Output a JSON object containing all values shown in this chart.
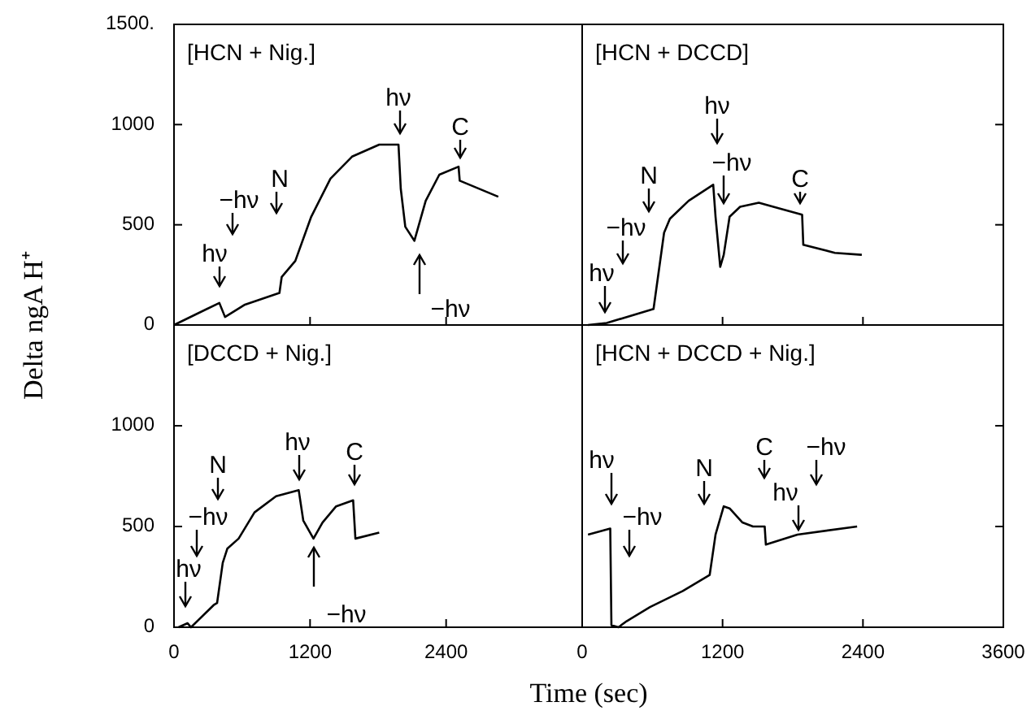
{
  "chart_data": [
    {
      "type": "line",
      "title": "[HCN + Nig.]",
      "ylabel": "Delta ngA H⁺",
      "xlim": [
        0,
        3600
      ],
      "ylim": [
        0,
        1500
      ],
      "xticks": [
        0,
        1200,
        2400
      ],
      "yticks": [
        0,
        500,
        1000,
        {
          "value": 1500,
          "label": "1500."
        }
      ],
      "tick_labels": "y",
      "series": [
        {
          "color": "#000000",
          "x": [
            0,
            400,
            450,
            620,
            930,
            950,
            1070,
            1210,
            1380,
            1570,
            1810,
            1980,
            2000,
            2040,
            2120,
            2220,
            2340,
            2510,
            2520,
            2860
          ],
          "values": [
            0,
            110,
            40,
            100,
            160,
            240,
            320,
            540,
            730,
            840,
            900,
            900,
            680,
            490,
            420,
            620,
            750,
            790,
            720,
            640
          ]
        }
      ],
      "annotations": [
        "hν",
        "−hν",
        "N",
        "hν",
        "−hν",
        "C"
      ]
    },
    {
      "type": "line",
      "title": "[HCN + DCCD]",
      "xlim": [
        0,
        3600
      ],
      "ylim": [
        0,
        1500
      ],
      "xticks": [
        0,
        1200,
        2400
      ],
      "yticks": [
        0,
        500,
        1000,
        1500
      ],
      "tick_labels": false,
      "series": [
        {
          "color": "#000000",
          "x": [
            50,
            210,
            610,
            700,
            750,
            910,
            1120,
            1140,
            1180,
            1210,
            1260,
            1350,
            1510,
            1880,
            1890,
            2160,
            2390
          ],
          "values": [
            0,
            10,
            80,
            460,
            530,
            620,
            700,
            540,
            290,
            350,
            540,
            590,
            610,
            550,
            400,
            360,
            350
          ]
        }
      ],
      "annotations": [
        "hν",
        "−hν",
        "N",
        "hν",
        "−hν",
        "C"
      ]
    },
    {
      "type": "line",
      "title": "[DCCD + Nig.]",
      "xlabel": "Time (sec)",
      "xlim": [
        0,
        3600
      ],
      "ylim": [
        0,
        1500
      ],
      "xticks": [
        0,
        1200,
        2400
      ],
      "yticks": [
        0,
        500,
        1000
      ],
      "series": [
        {
          "color": "#000000",
          "x": [
            40,
            120,
            150,
            350,
            380,
            430,
            470,
            570,
            710,
            900,
            1100,
            1140,
            1230,
            1310,
            1430,
            1580,
            1600,
            1810
          ],
          "values": [
            0,
            20,
            0,
            110,
            120,
            320,
            390,
            440,
            570,
            650,
            680,
            530,
            440,
            520,
            600,
            630,
            440,
            470
          ]
        }
      ],
      "annotations": [
        "hν",
        "−hν",
        "N",
        "hν",
        "−hν",
        "C"
      ]
    },
    {
      "type": "line",
      "title": "[HCN + DCCD + Nig.]",
      "xlim": [
        0,
        3600
      ],
      "ylim": [
        0,
        1500
      ],
      "xticks": [
        0,
        1200,
        2400,
        3600
      ],
      "yticks": [
        0,
        500,
        1000,
        1500
      ],
      "tick_labels": "x",
      "series": [
        {
          "color": "#000000",
          "x": [
            50,
            240,
            250,
            310,
            380,
            580,
            860,
            1090,
            1140,
            1210,
            1260,
            1370,
            1460,
            1560,
            1570,
            1840,
            2350
          ],
          "values": [
            460,
            490,
            10,
            0,
            30,
            100,
            180,
            260,
            460,
            600,
            590,
            520,
            500,
            500,
            410,
            460,
            500
          ]
        }
      ],
      "annotations": [
        "hν",
        "−hν",
        "N",
        "C",
        "hν",
        "−hν"
      ]
    }
  ]
}
